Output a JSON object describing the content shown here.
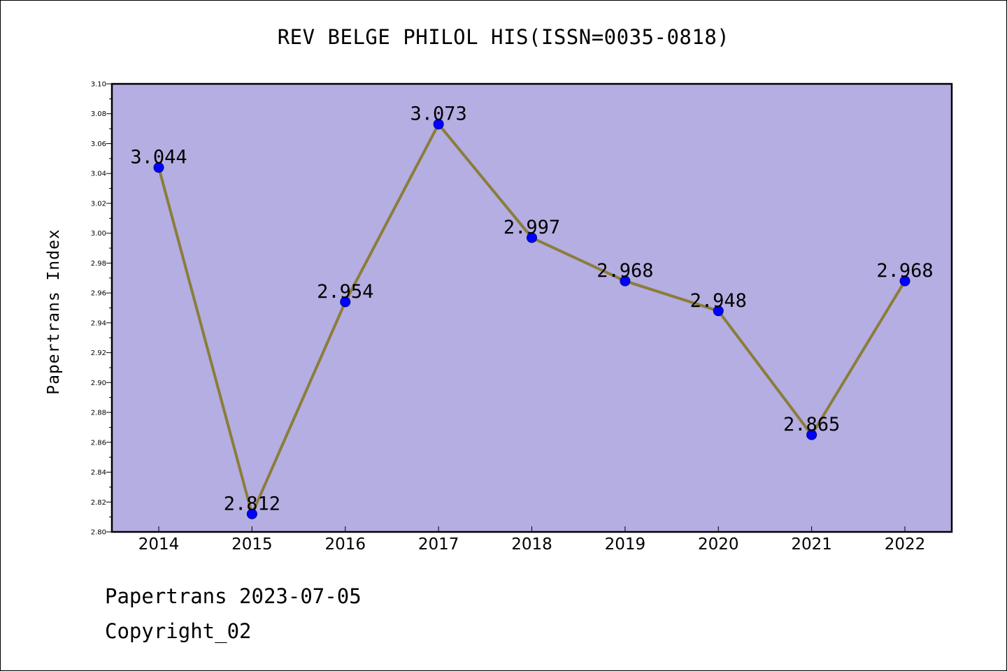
{
  "chart_data": {
    "type": "line",
    "title": "REV BELGE PHILOL HIS(ISSN=0035-0818)",
    "xlabel": "",
    "ylabel": "Papertrans Index",
    "categories": [
      "2014",
      "2015",
      "2016",
      "2017",
      "2018",
      "2019",
      "2020",
      "2021",
      "2022"
    ],
    "values": [
      3.044,
      2.812,
      2.954,
      3.073,
      2.997,
      2.968,
      2.948,
      2.865,
      2.968
    ],
    "data_labels": [
      "3.044",
      "2.812",
      "2.954",
      "3.073",
      "2.997",
      "2.968",
      "2.948",
      "2.865",
      "2.968"
    ],
    "ylim": [
      2.8,
      3.1
    ],
    "yticks": [
      "2.80",
      "2.82",
      "2.84",
      "2.86",
      "2.88",
      "2.90",
      "2.92",
      "2.94",
      "2.96",
      "2.98",
      "3.00",
      "3.02",
      "3.04",
      "3.06",
      "3.08",
      "3.10"
    ],
    "grid": false,
    "legend": "none",
    "colors": {
      "plot_background": "#b4aee2",
      "line": "#8b7d3a",
      "marker": "#0000ff",
      "marker_edge": "#00008b"
    }
  },
  "footer": {
    "line1": "Papertrans 2023-07-05",
    "line2": "Copyright_02"
  }
}
